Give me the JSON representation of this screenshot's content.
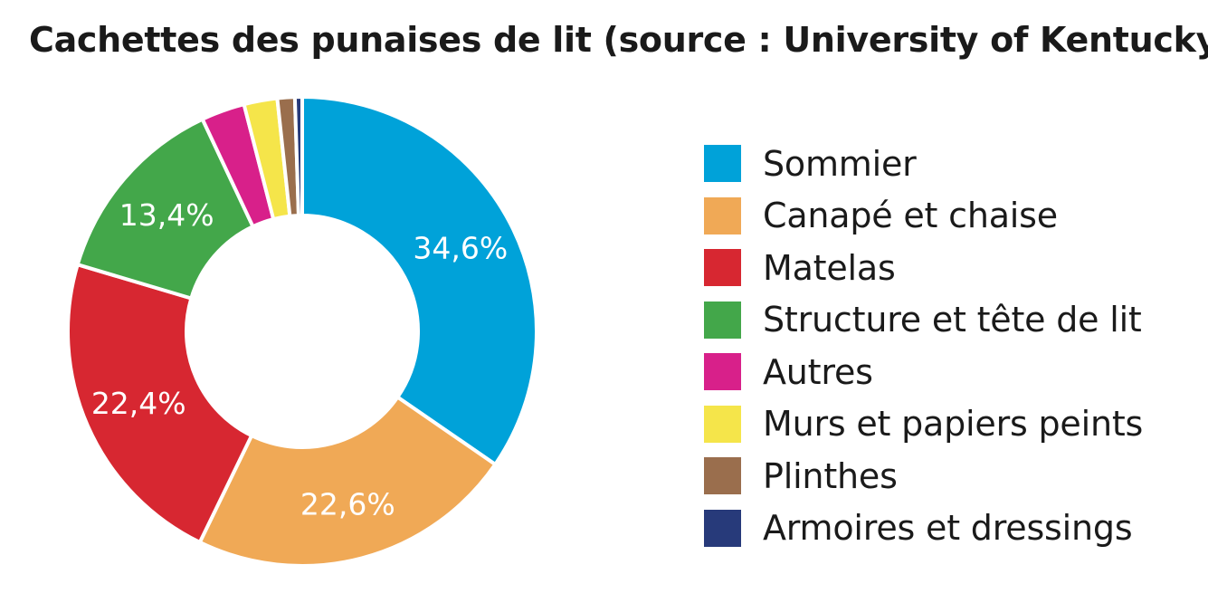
{
  "chart_data": {
    "type": "pie",
    "title": "Cachettes des punaises de lit (source : University of Kentucky)",
    "legend_position": "right",
    "categories": [
      "Sommier",
      "Canapé et chaise",
      "Matelas",
      "Structure et tête de lit",
      "Autres",
      "Murs et papiers peints",
      "Plinthes",
      "Armoires et dressings"
    ],
    "values": [
      34.6,
      22.6,
      22.4,
      13.4,
      3.0,
      2.3,
      1.2,
      0.5
    ],
    "data_labels": [
      "34,6%",
      "22,6%",
      "22,4%",
      "13,4%",
      "",
      "",
      "",
      ""
    ],
    "colors": [
      "#00a2d9",
      "#f0a956",
      "#d72731",
      "#43a74a",
      "#d8208a",
      "#f5e54a",
      "#9a6e4d",
      "#273a7a"
    ]
  }
}
